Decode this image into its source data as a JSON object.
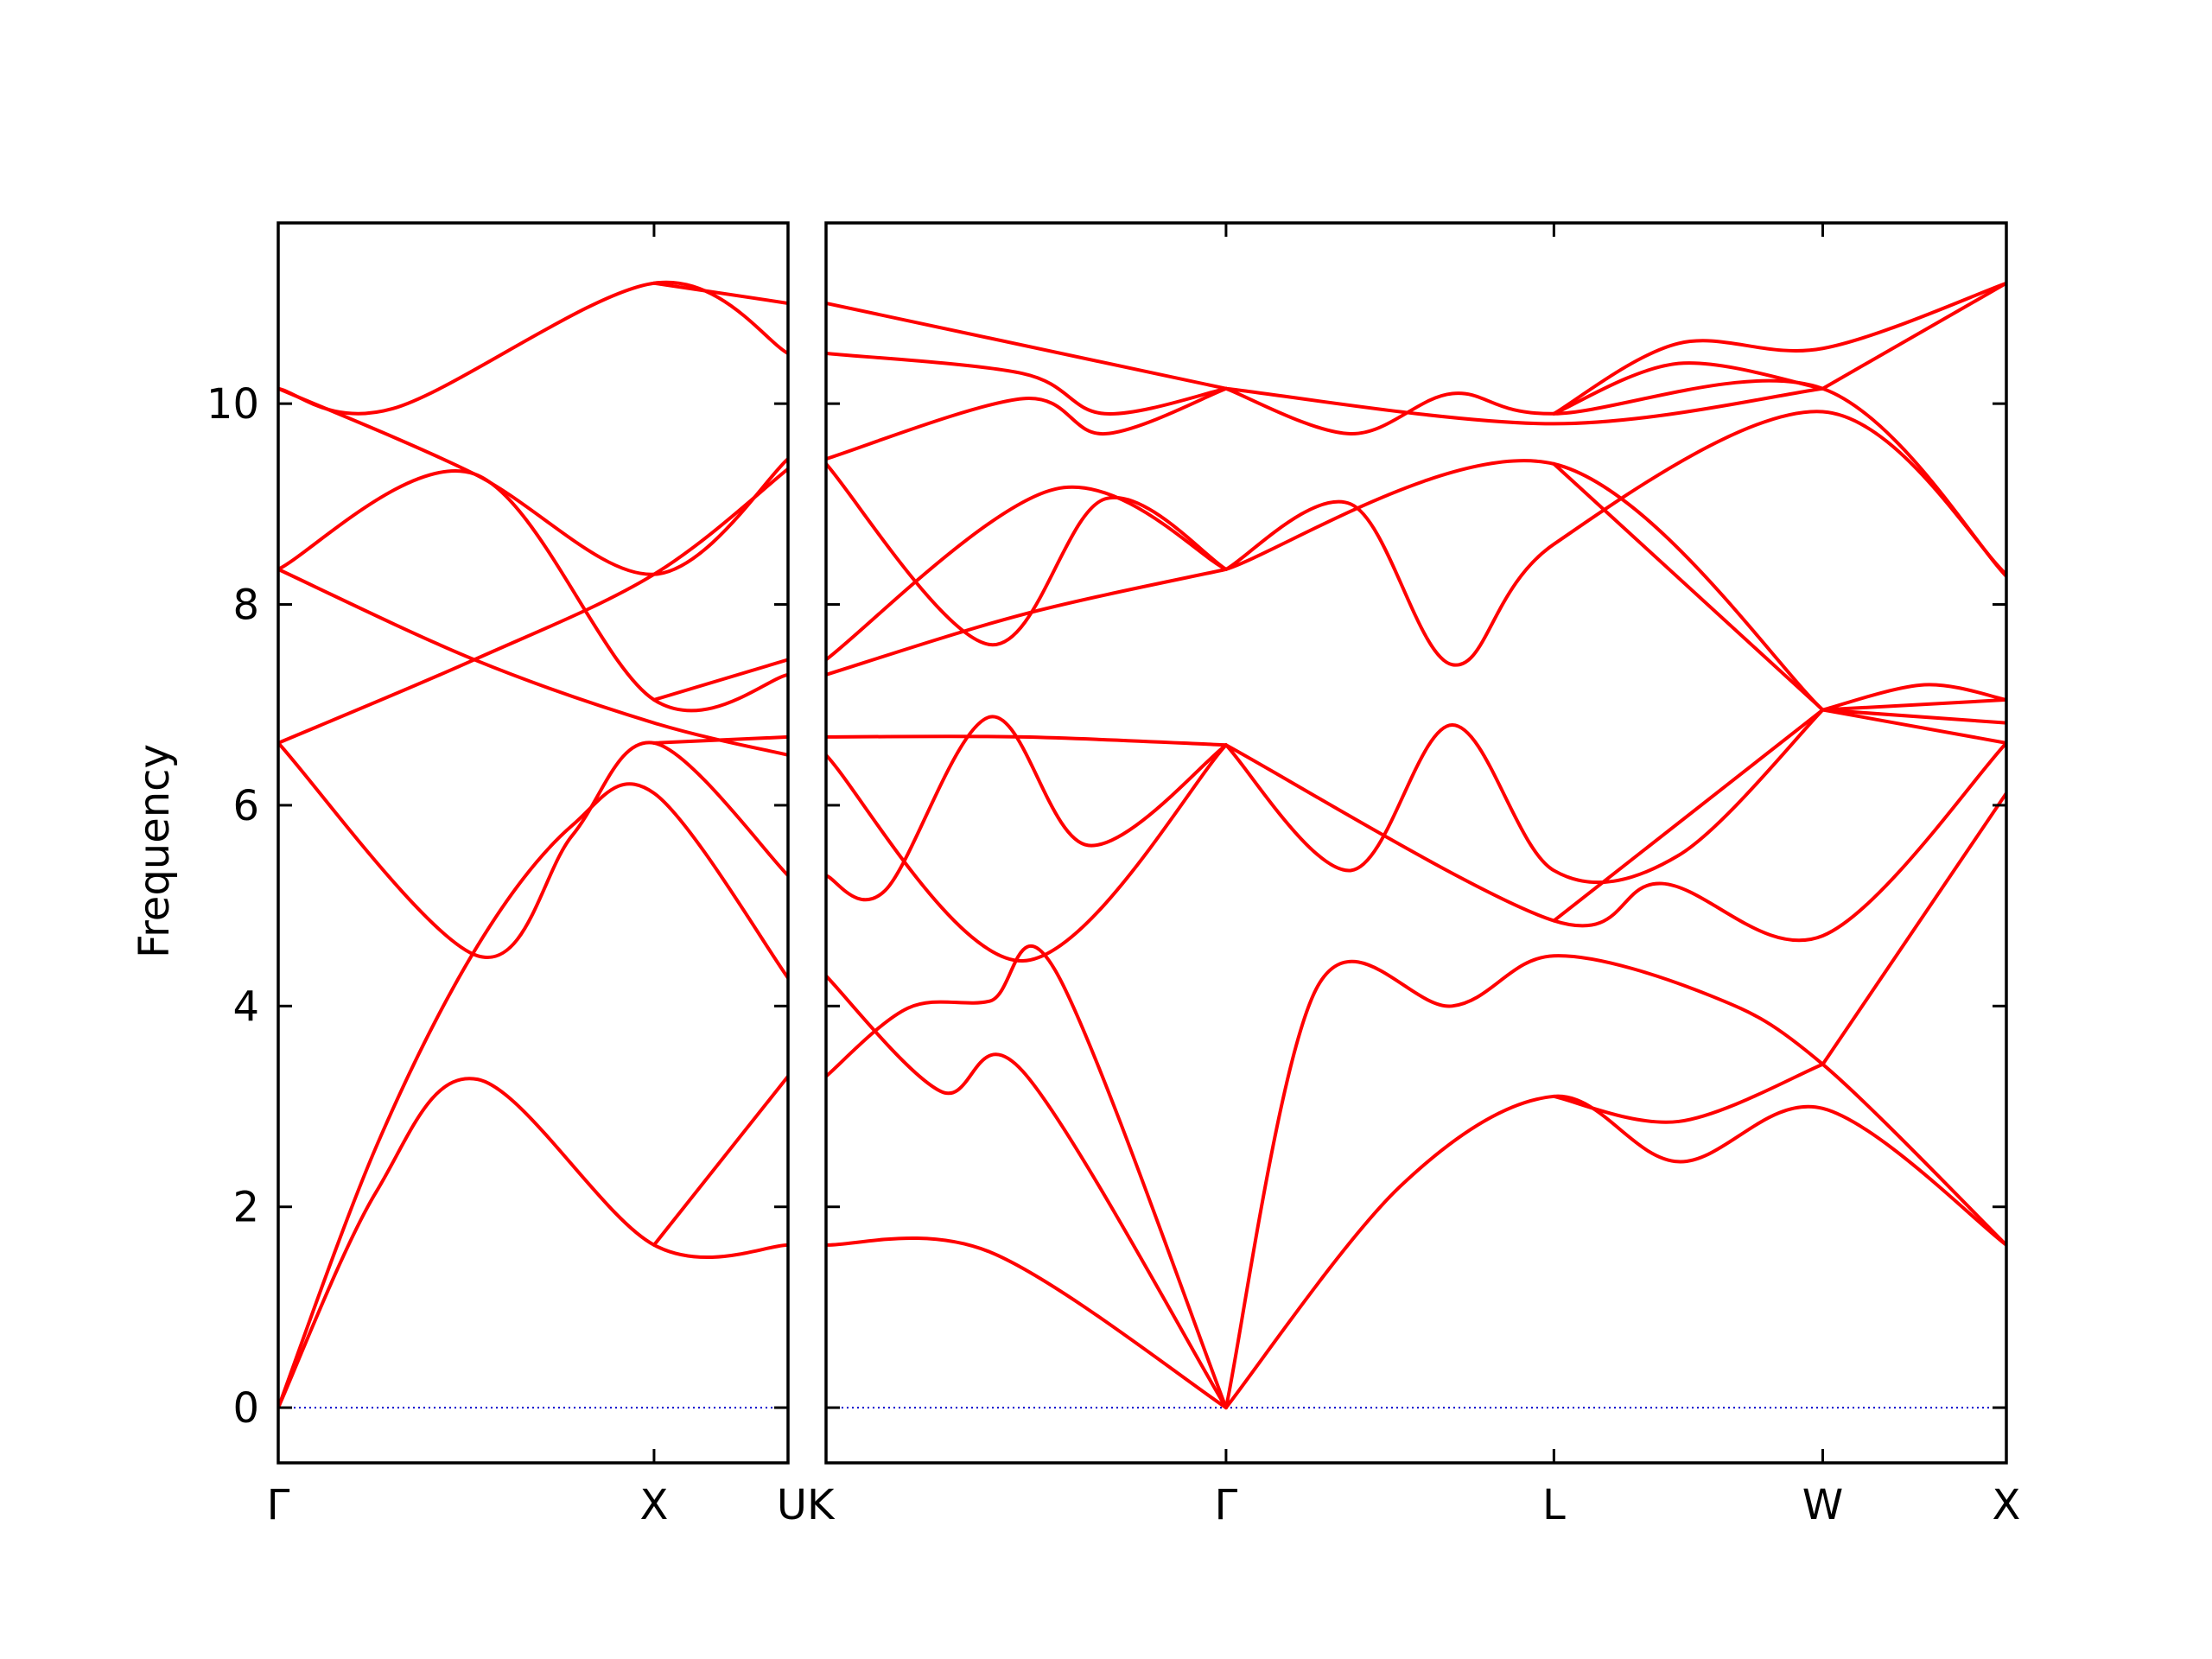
{
  "chart_data": {
    "type": "line",
    "title": "",
    "ylabel": "Frequency",
    "ylim": [
      -0.55,
      11.8
    ],
    "yticks": [
      "0",
      "2",
      "4",
      "6",
      "8",
      "10"
    ],
    "grid": false,
    "legend": "none",
    "colors": {
      "bands": "#ff0000",
      "zero_line": "#0000cc"
    },
    "panels": [
      {
        "name": "panel-gamma-x-u",
        "xlim": [
          0,
          1.56
        ],
        "xticks": [
          {
            "pos": 0,
            "label": "Γ"
          },
          {
            "pos": 1.15,
            "label": "X"
          },
          {
            "pos": 1.56,
            "label": "U"
          }
        ],
        "bands": [
          [
            [
              0,
              0
            ],
            [
              0.3,
              2.15
            ],
            [
              0.61,
              3.27
            ],
            [
              1.15,
              1.62
            ],
            [
              1.56,
              1.62
            ]
          ],
          [
            [
              0,
              0
            ],
            [
              0.3,
              2.6
            ],
            [
              0.61,
              4.6
            ],
            [
              0.9,
              5.8
            ],
            [
              1.15,
              6.12
            ],
            [
              1.56,
              4.28
            ]
          ],
          [
            [
              0,
              6.62
            ],
            [
              0.61,
              4.5
            ],
            [
              0.9,
              5.7
            ],
            [
              1.15,
              6.62
            ],
            [
              1.56,
              5.3
            ]
          ],
          [
            [
              0,
              6.62
            ],
            [
              0.6,
              7.45
            ],
            [
              1.15,
              8.3
            ],
            [
              1.56,
              9.35
            ]
          ],
          [
            [
              0,
              8.35
            ],
            [
              0.6,
              9.3
            ],
            [
              1.15,
              7.05
            ],
            [
              1.56,
              7.3
            ]
          ],
          [
            [
              0,
              8.35
            ],
            [
              0.6,
              7.45
            ],
            [
              1.15,
              6.82
            ],
            [
              1.56,
              6.5
            ]
          ],
          [
            [
              0,
              10.15
            ],
            [
              0.6,
              9.3
            ],
            [
              1.15,
              8.3
            ],
            [
              1.56,
              9.45
            ]
          ],
          [
            [
              0,
              10.15
            ],
            [
              0.35,
              9.95
            ],
            [
              1.15,
              11.2
            ],
            [
              1.56,
              10.5
            ]
          ],
          [
            [
              1.15,
              1.62
            ],
            [
              1.56,
              3.3
            ]
          ],
          [
            [
              1.15,
              6.62
            ],
            [
              1.56,
              6.68
            ]
          ],
          [
            [
              1.15,
              7.05
            ],
            [
              1.56,
              7.45
            ]
          ],
          [
            [
              1.15,
              11.2
            ],
            [
              1.56,
              11.0
            ]
          ]
        ]
      },
      {
        "name": "panel-k-gamma-l-w-x",
        "xlim": [
          0,
          3.6
        ],
        "xticks": [
          {
            "pos": 0,
            "label": "K"
          },
          {
            "pos": 1.22,
            "label": "Γ"
          },
          {
            "pos": 2.22,
            "label": "L"
          },
          {
            "pos": 3.04,
            "label": "W"
          },
          {
            "pos": 3.6,
            "label": "X"
          }
        ],
        "bands": [
          [
            [
              0,
              1.62
            ],
            [
              0.5,
              1.55
            ],
            [
              1.22,
              0
            ]
          ],
          [
            [
              0,
              4.3
            ],
            [
              0.35,
              3.15
            ],
            [
              0.6,
              3.35
            ],
            [
              1.22,
              0
            ]
          ],
          [
            [
              0,
              3.3
            ],
            [
              0.25,
              3.98
            ],
            [
              0.5,
              4.05
            ],
            [
              0.7,
              4.35
            ],
            [
              1.22,
              0
            ]
          ],
          [
            [
              1.22,
              0
            ],
            [
              1.75,
              2.2
            ],
            [
              2.22,
              3.1
            ],
            [
              2.6,
              2.45
            ],
            [
              3.04,
              2.98
            ],
            [
              3.6,
              1.62
            ]
          ],
          [
            [
              2.22,
              3.1
            ],
            [
              2.6,
              2.85
            ],
            [
              3.04,
              3.42
            ]
          ],
          [
            [
              1.22,
              0
            ],
            [
              1.5,
              4.2
            ],
            [
              1.91,
              4.0
            ],
            [
              2.22,
              4.5
            ],
            [
              2.7,
              4.1
            ],
            [
              3.04,
              3.42
            ],
            [
              3.6,
              1.62
            ]
          ],
          [
            [
              3.04,
              3.42
            ],
            [
              3.6,
              6.12
            ]
          ],
          [
            [
              0,
              5.3
            ],
            [
              0.18,
              5.15
            ],
            [
              0.5,
              6.88
            ],
            [
              0.8,
              5.6
            ],
            [
              1.22,
              6.6
            ]
          ],
          [
            [
              0,
              6.5
            ],
            [
              0.6,
              4.45
            ],
            [
              1.22,
              6.6
            ]
          ],
          [
            [
              0,
              6.68
            ],
            [
              0.6,
              6.68
            ],
            [
              1.22,
              6.6
            ]
          ],
          [
            [
              1.22,
              6.6
            ],
            [
              1.6,
              5.35
            ],
            [
              1.91,
              6.8
            ],
            [
              2.22,
              5.35
            ],
            [
              2.6,
              5.5
            ],
            [
              3.04,
              6.95
            ]
          ],
          [
            [
              1.22,
              6.6
            ],
            [
              2.22,
              4.85
            ],
            [
              2.55,
              5.22
            ],
            [
              3.04,
              4.7
            ],
            [
              3.6,
              6.62
            ]
          ],
          [
            [
              2.22,
              4.85
            ],
            [
              3.04,
              6.95
            ]
          ],
          [
            [
              3.04,
              6.95
            ],
            [
              3.6,
              6.62
            ]
          ],
          [
            [
              3.04,
              6.95
            ],
            [
              3.6,
              6.82
            ]
          ],
          [
            [
              3.04,
              6.95
            ],
            [
              3.35,
              7.2
            ],
            [
              3.6,
              7.05
            ]
          ],
          [
            [
              3.04,
              6.95
            ],
            [
              3.6,
              7.05
            ]
          ],
          [
            [
              0,
              7.3
            ],
            [
              0.6,
              7.9
            ],
            [
              1.22,
              8.35
            ]
          ],
          [
            [
              0,
              7.45
            ],
            [
              0.7,
              9.15
            ],
            [
              1.22,
              8.35
            ]
          ],
          [
            [
              0,
              9.4
            ],
            [
              0.5,
              7.6
            ],
            [
              0.85,
              9.05
            ],
            [
              1.22,
              8.35
            ]
          ],
          [
            [
              0,
              9.45
            ],
            [
              0.6,
              10.05
            ],
            [
              0.85,
              9.7
            ],
            [
              1.22,
              10.15
            ]
          ],
          [
            [
              0,
              10.5
            ],
            [
              0.6,
              10.3
            ],
            [
              0.85,
              9.9
            ],
            [
              1.22,
              10.15
            ]
          ],
          [
            [
              0,
              11.0
            ],
            [
              1.22,
              10.15
            ]
          ],
          [
            [
              1.22,
              8.35
            ],
            [
              1.6,
              9.0
            ],
            [
              1.91,
              7.4
            ],
            [
              2.22,
              8.6
            ],
            [
              3.04,
              9.92
            ],
            [
              3.6,
              8.3
            ]
          ],
          [
            [
              1.22,
              8.35
            ],
            [
              2.22,
              9.4
            ],
            [
              3.04,
              6.95
            ]
          ],
          [
            [
              2.22,
              9.4
            ],
            [
              3.04,
              6.95
            ]
          ],
          [
            [
              1.22,
              10.15
            ],
            [
              1.6,
              9.7
            ],
            [
              1.91,
              10.1
            ],
            [
              2.22,
              9.9
            ],
            [
              3.04,
              10.15
            ],
            [
              3.6,
              8.28
            ]
          ],
          [
            [
              1.22,
              10.15
            ],
            [
              2.22,
              9.8
            ],
            [
              3.04,
              10.15
            ]
          ],
          [
            [
              2.22,
              9.9
            ],
            [
              2.6,
              10.4
            ],
            [
              3.04,
              10.15
            ]
          ],
          [
            [
              2.22,
              9.9
            ],
            [
              2.6,
              10.6
            ],
            [
              3.04,
              10.55
            ],
            [
              3.6,
              11.2
            ]
          ],
          [
            [
              3.04,
              10.15
            ],
            [
              3.6,
              11.2
            ]
          ]
        ]
      }
    ]
  }
}
